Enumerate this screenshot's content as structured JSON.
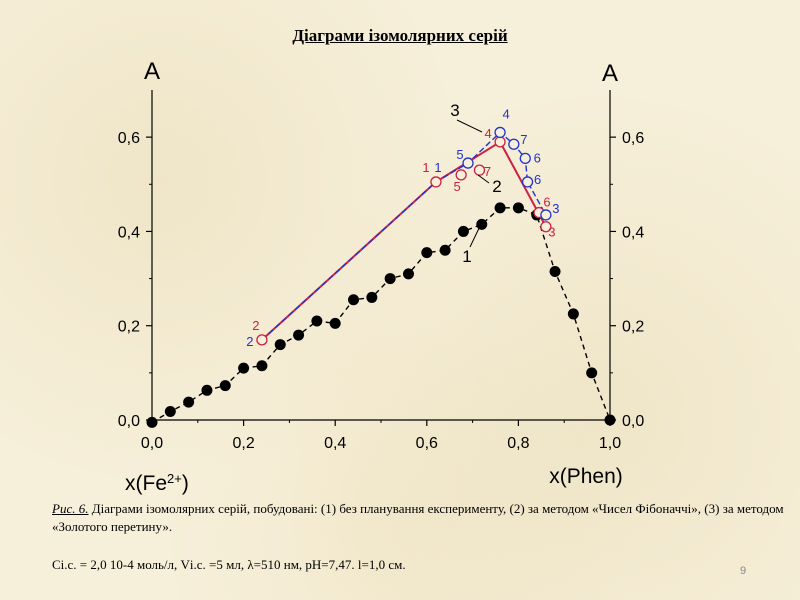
{
  "slide": {
    "title": "Діаграми ізомолярних серій",
    "page_number": "9",
    "caption_prefix": "Рис. 6.",
    "caption_text": "Діаграми ізомолярних серій, побудовані: (1) без планування експерименту, (2) за методом «Чисел Фібоначчі», (3) за методом «Золотого перетину».",
    "params_text": "Сі.с. = 2,0 10-4 моль/л, Vі.с. =5 мл, λ=510 нм, pH=7,47. l=1,0 см."
  },
  "colors": {
    "series1": "#000000",
    "series2": "#cc2244",
    "series3": "#2233cc",
    "axis": "#000000"
  },
  "chart_data": {
    "type": "scatter",
    "title": "Діаграми ізомолярних серій",
    "xlabel_left": "x(Fe2+)",
    "xlabel_right": "x(Phen)",
    "ylabel_left": "A",
    "ylabel_right": "A",
    "xlim": [
      0.0,
      1.0
    ],
    "ylim": [
      0.0,
      0.7
    ],
    "xticks": [
      0.0,
      0.2,
      0.4,
      0.6,
      0.8,
      1.0
    ],
    "xtick_labels": [
      "0,0",
      "0,2",
      "0,4",
      "0,6",
      "0,8",
      "1,0"
    ],
    "yticks": [
      0.0,
      0.2,
      0.4,
      0.6
    ],
    "ytick_labels": [
      "0,0",
      "0,2",
      "0,4",
      "0,6"
    ],
    "series": [
      {
        "name": "1",
        "label": "1",
        "style": "filled-dash",
        "x": [
          0.0,
          0.04,
          0.08,
          0.12,
          0.16,
          0.2,
          0.24,
          0.28,
          0.32,
          0.36,
          0.4,
          0.44,
          0.48,
          0.52,
          0.56,
          0.6,
          0.64,
          0.68,
          0.72,
          0.76,
          0.8,
          0.84,
          0.88,
          0.92,
          0.96,
          1.0
        ],
        "y": [
          -0.005,
          0.018,
          0.038,
          0.063,
          0.073,
          0.11,
          0.115,
          0.16,
          0.18,
          0.21,
          0.205,
          0.255,
          0.26,
          0.3,
          0.31,
          0.355,
          0.36,
          0.4,
          0.415,
          0.45,
          0.45,
          0.435,
          0.315,
          0.225,
          0.1,
          0.0
        ]
      },
      {
        "name": "2",
        "label": "2",
        "style": "open-red",
        "x": [
          0.24,
          0.62,
          0.76,
          0.86,
          0.715,
          0.675,
          0.845
        ],
        "y": [
          0.17,
          0.505,
          0.59,
          0.41,
          0.53,
          0.52,
          0.44
        ],
        "point_labels": [
          "2",
          "1",
          "4",
          "3",
          "7",
          "5",
          "6"
        ]
      },
      {
        "name": "3",
        "label": "3",
        "style": "open-blue",
        "x": [
          0.24,
          0.62,
          0.76,
          0.86,
          0.69,
          0.79,
          0.815,
          0.82
        ],
        "y": [
          0.17,
          0.505,
          0.61,
          0.435,
          0.545,
          0.585,
          0.555,
          0.505
        ],
        "point_labels": [
          "2",
          "1",
          "4",
          "3",
          "5",
          "7",
          "6",
          "6"
        ]
      }
    ],
    "annotations": [
      "1",
      "2",
      "3"
    ]
  }
}
